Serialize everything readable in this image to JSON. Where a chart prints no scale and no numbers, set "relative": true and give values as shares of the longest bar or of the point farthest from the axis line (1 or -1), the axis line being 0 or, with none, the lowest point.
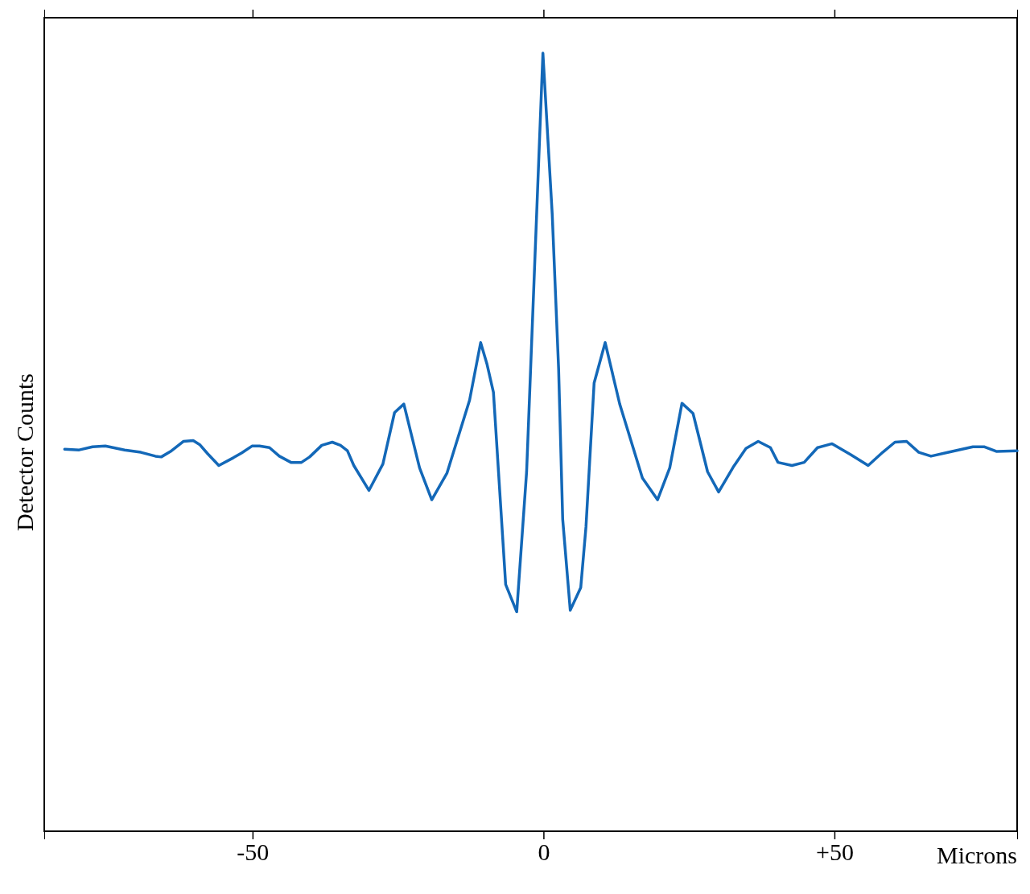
{
  "chart_data": {
    "type": "line",
    "xlabel": "Microns",
    "ylabel": "Detector Counts",
    "relative": true,
    "xlim": [
      -85.8,
      81.4
    ],
    "xticks": [
      -50,
      0,
      {
        "value": 50,
        "label": "+50"
      }
    ],
    "series": [
      {
        "color": "#1368b8",
        "x": [
          -82.3,
          -79.8,
          -77.5,
          -75.3,
          -72.0,
          -69.2,
          -66.7,
          -65.7,
          -64.1,
          -61.9,
          -60.2,
          -59.1,
          -57.7,
          -55.8,
          -53.3,
          -51.9,
          -50.1,
          -48.8,
          -47.1,
          -45.4,
          -43.4,
          -41.6,
          -40.2,
          -38.1,
          -36.3,
          -34.9,
          -33.7,
          -32.6,
          -30.0,
          -27.6,
          -25.6,
          -24.0,
          -21.3,
          -19.2,
          -16.6,
          -12.7,
          -10.8,
          -9.7,
          -8.6,
          -6.5,
          -4.6,
          -2.9,
          -0.1,
          1.5,
          2.6,
          3.3,
          4.6,
          6.4,
          7.3,
          8.7,
          10.6,
          13.1,
          17.0,
          19.6,
          21.7,
          23.8,
          25.7,
          28.2,
          30.1,
          32.7,
          34.8,
          36.9,
          39.0,
          40.3,
          42.7,
          44.8,
          47.1,
          49.6,
          52.8,
          55.8,
          58.3,
          60.4,
          62.4,
          64.5,
          66.6,
          69.6,
          73.8,
          75.8,
          77.9,
          81.4
        ],
        "values": [
          0.491,
          0.49,
          0.494,
          0.495,
          0.49,
          0.487,
          0.482,
          0.481,
          0.488,
          0.501,
          0.502,
          0.497,
          0.485,
          0.47,
          0.48,
          0.486,
          0.495,
          0.495,
          0.493,
          0.482,
          0.474,
          0.474,
          0.481,
          0.496,
          0.5,
          0.496,
          0.489,
          0.47,
          0.438,
          0.472,
          0.538,
          0.549,
          0.467,
          0.426,
          0.46,
          0.554,
          0.628,
          0.6,
          0.564,
          0.317,
          0.282,
          0.462,
          1,
          0.793,
          0.594,
          0.401,
          0.284,
          0.313,
          0.391,
          0.576,
          0.628,
          0.549,
          0.454,
          0.426,
          0.467,
          0.55,
          0.537,
          0.462,
          0.436,
          0.469,
          0.492,
          0.501,
          0.493,
          0.474,
          0.47,
          0.474,
          0.493,
          0.498,
          0.484,
          0.47,
          0.487,
          0.5,
          0.501,
          0.487,
          0.482,
          0.487,
          0.494,
          0.494,
          0.488,
          0.489
        ]
      }
    ]
  }
}
